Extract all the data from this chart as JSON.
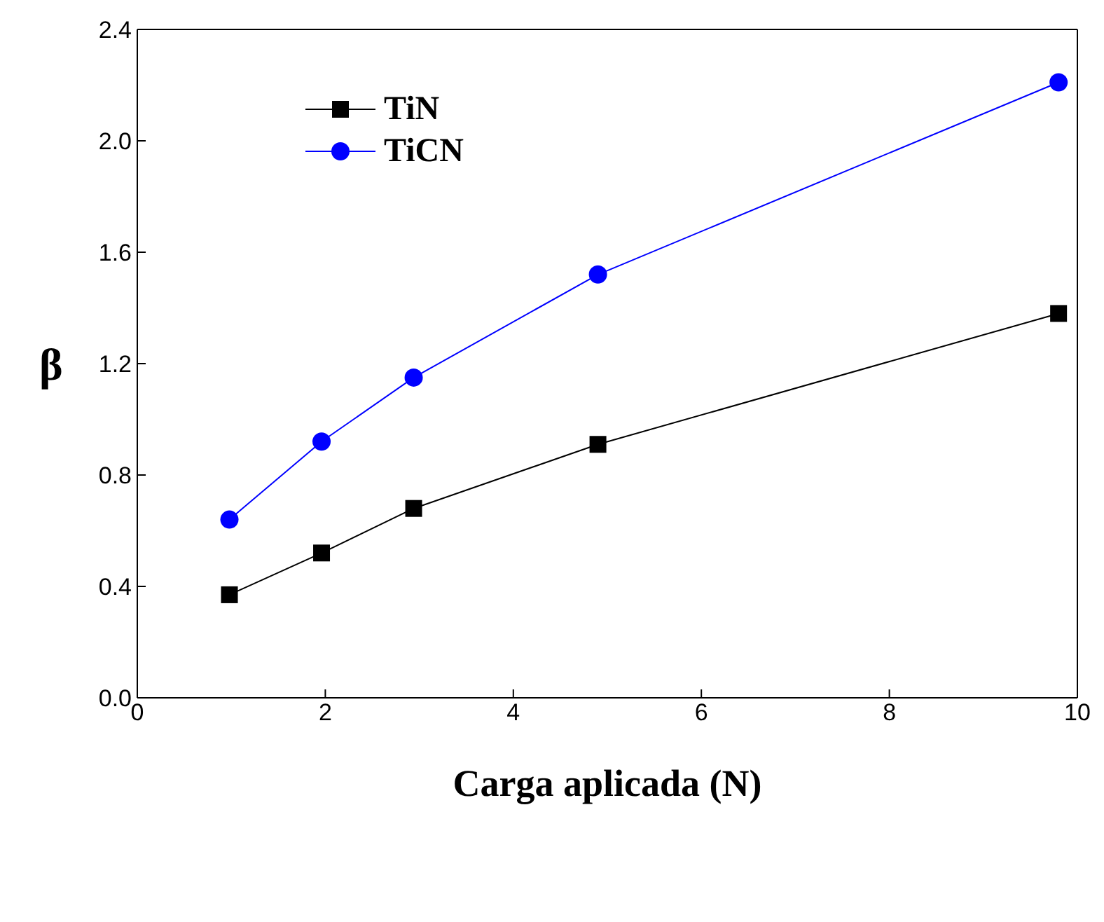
{
  "chart_data": {
    "type": "line",
    "xlabel": "Carga aplicada (N)",
    "ylabel": "β",
    "xlim": [
      0,
      10
    ],
    "xticks": [
      0,
      2,
      4,
      6,
      8,
      10
    ],
    "ylim": [
      0,
      2.4
    ],
    "yticks": [
      {
        "value": 0,
        "label": "0.0"
      },
      {
        "value": 0.4,
        "label": "0.4"
      },
      {
        "value": 0.8,
        "label": "0.8"
      },
      {
        "value": 1.2,
        "label": "1.2"
      },
      {
        "value": 1.6,
        "label": "1.6"
      },
      {
        "value": 2,
        "label": "2.0"
      },
      {
        "value": 2.4,
        "label": "2.4"
      }
    ],
    "x": [
      0.98,
      1.96,
      2.94,
      4.9,
      9.8
    ],
    "legend": "top left",
    "series": [
      {
        "name": "TiN",
        "color": "#000000",
        "marker": "square",
        "values": [
          0.37,
          0.52,
          0.68,
          0.91,
          1.38
        ]
      },
      {
        "name": "TiCN",
        "color": "#0000ff",
        "marker": "circle",
        "values": [
          0.64,
          0.92,
          1.15,
          1.52,
          2.21
        ]
      }
    ]
  }
}
